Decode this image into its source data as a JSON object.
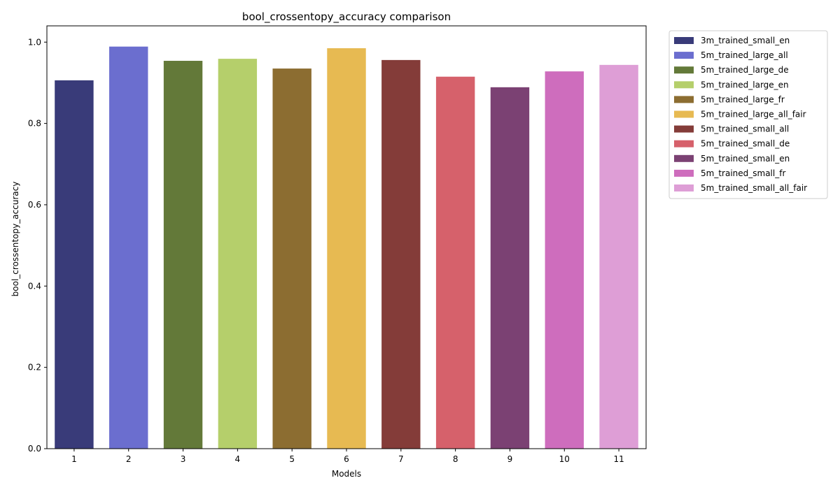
{
  "chart_data": {
    "type": "bar",
    "title": "bool_crossentopy_accuracy comparison",
    "xlabel": "Models",
    "ylabel": "bool_crossentopy_accuracy",
    "ylim": [
      0,
      1.04
    ],
    "yticks": [
      "0.0",
      "0.2",
      "0.4",
      "0.6",
      "0.8",
      "1.0"
    ],
    "grid": false,
    "legend_position": "outside-top-right",
    "categories": [
      "1",
      "2",
      "3",
      "4",
      "5",
      "6",
      "7",
      "8",
      "9",
      "10",
      "11"
    ],
    "series": [
      {
        "name": "3m_trained_small_en",
        "value": 0.906,
        "color": "#393b79"
      },
      {
        "name": "5m_trained_large_all",
        "value": 0.989,
        "color": "#6b6ecf"
      },
      {
        "name": "5m_trained_large_de",
        "value": 0.954,
        "color": "#637939"
      },
      {
        "name": "5m_trained_large_en",
        "value": 0.959,
        "color": "#b5cf6b"
      },
      {
        "name": "5m_trained_large_fr",
        "value": 0.935,
        "color": "#8c6d31"
      },
      {
        "name": "5m_trained_large_all_fair",
        "value": 0.985,
        "color": "#e7ba52"
      },
      {
        "name": "5m_trained_small_all",
        "value": 0.956,
        "color": "#843c39"
      },
      {
        "name": "5m_trained_small_de",
        "value": 0.915,
        "color": "#d6616b"
      },
      {
        "name": "5m_trained_small_en",
        "value": 0.889,
        "color": "#7b4173"
      },
      {
        "name": "5m_trained_small_fr",
        "value": 0.928,
        "color": "#ce6dbd"
      },
      {
        "name": "5m_trained_small_all_fair",
        "value": 0.944,
        "color": "#de9ed6"
      }
    ]
  }
}
